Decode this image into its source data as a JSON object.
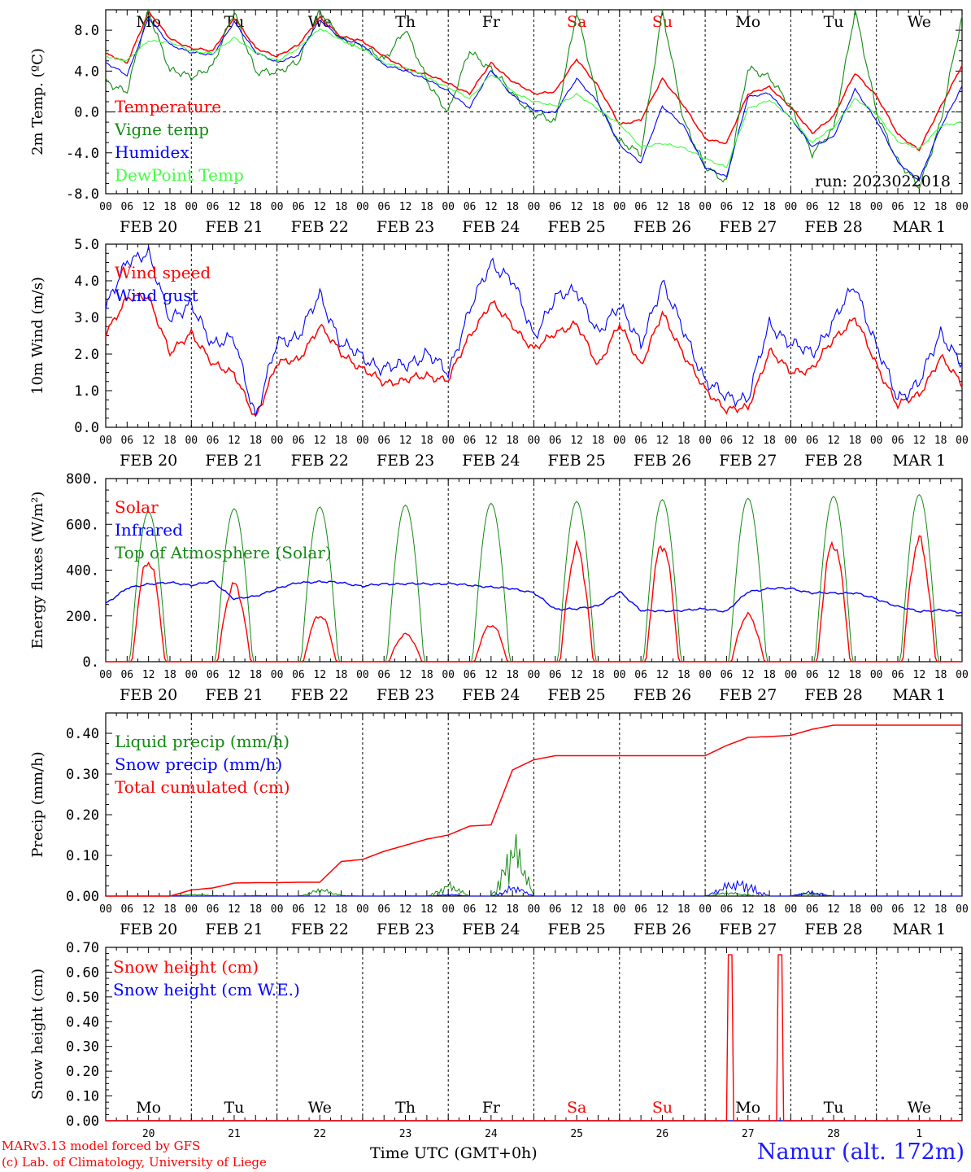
{
  "chart_data": [
    {
      "type": "line",
      "ylabel": "2m Temp. (ºC)",
      "ylim": [
        -8,
        10
      ],
      "yticks": [
        "-8.0",
        "-4.0",
        "0.0",
        "4.0",
        "8.0"
      ],
      "zero_line": true,
      "day_labels": [
        {
          "text": "Mo",
          "color": "#000000"
        },
        {
          "text": "Tu",
          "color": "#000000"
        },
        {
          "text": "We",
          "color": "#000000"
        },
        {
          "text": "Th",
          "color": "#000000"
        },
        {
          "text": "Fr",
          "color": "#000000"
        },
        {
          "text": "Sa",
          "color": "#ff0000"
        },
        {
          "text": "Su",
          "color": "#ff0000"
        },
        {
          "text": "Mo",
          "color": "#000000"
        },
        {
          "text": "Tu",
          "color": "#000000"
        },
        {
          "text": "We",
          "color": "#000000"
        }
      ],
      "annotation": "run: 2023022018",
      "x_hours": [
        0,
        6,
        12,
        18,
        24,
        30,
        36,
        42,
        48,
        54,
        60,
        66,
        72,
        78,
        84,
        90,
        96,
        102,
        108,
        114,
        120,
        126,
        132,
        138,
        144,
        150,
        156,
        162,
        168,
        174,
        180,
        186,
        192,
        198,
        204,
        210,
        216,
        222,
        228,
        234,
        240
      ],
      "series": [
        {
          "name": "Temperature",
          "color": "#ff0000",
          "values": [
            5.7,
            4.8,
            9.8,
            7.2,
            6.2,
            6.0,
            9.2,
            6.3,
            5.4,
            6.6,
            9.2,
            7.4,
            6.9,
            5.5,
            4.2,
            3.7,
            2.8,
            1.8,
            4.8,
            3.0,
            1.8,
            2.0,
            5.2,
            2.5,
            -1.2,
            -0.8,
            3.3,
            0.6,
            -2.6,
            -3.1,
            1.8,
            2.4,
            0.5,
            -2.1,
            -0.4,
            3.8,
            1.6,
            -2.2,
            -3.7,
            0.5,
            4.6
          ]
        },
        {
          "name": "Vigne temp",
          "color": "#138a13",
          "values": [
            3.0,
            2.0,
            10.0,
            4.0,
            3.5,
            4.4,
            10.0,
            3.8,
            4.0,
            4.8,
            10.0,
            7.0,
            6.5,
            5.0,
            8.2,
            3.0,
            0.0,
            6.0,
            4.2,
            1.8,
            -0.2,
            -1.0,
            9.8,
            1.0,
            -3.0,
            -4.0,
            9.8,
            -0.8,
            -5.4,
            -6.8,
            4.2,
            3.5,
            0.4,
            -4.0,
            -1.8,
            10.0,
            0.0,
            -4.8,
            -7.4,
            -1.0,
            9.4
          ]
        },
        {
          "name": "Humidex",
          "color": "#0000ff",
          "values": [
            4.8,
            3.6,
            9.2,
            6.6,
            5.8,
            5.6,
            8.8,
            5.9,
            4.8,
            5.6,
            9.0,
            7.2,
            6.5,
            4.6,
            4.0,
            3.2,
            2.0,
            0.4,
            4.1,
            1.6,
            0.2,
            -0.1,
            3.3,
            0.9,
            -3.2,
            -5.0,
            0.6,
            -1.4,
            -5.4,
            -6.4,
            1.5,
            1.8,
            -0.6,
            -3.4,
            -2.4,
            2.2,
            -0.8,
            -4.9,
            -6.7,
            -1.5,
            2.5
          ]
        },
        {
          "name": "DewPoint Temp",
          "color": "#40ff40",
          "values": [
            5.5,
            5.0,
            7.0,
            6.8,
            6.0,
            5.7,
            7.3,
            5.8,
            5.0,
            6.2,
            8.2,
            7.0,
            6.2,
            4.8,
            4.3,
            3.4,
            2.4,
            1.3,
            3.7,
            2.0,
            1.0,
            0.6,
            1.7,
            0.3,
            -1.2,
            -3.4,
            -3.1,
            -3.5,
            -4.6,
            -5.4,
            0.3,
            1.2,
            -0.6,
            -3.0,
            -1.5,
            1.3,
            -0.2,
            -2.9,
            -3.6,
            -1.4,
            -1.0
          ]
        }
      ]
    },
    {
      "type": "line",
      "ylabel": "10m Wind (m/s)",
      "ylim": [
        0,
        5
      ],
      "yticks": [
        "0.0",
        "1.0",
        "2.0",
        "3.0",
        "4.0",
        "5.0"
      ],
      "x_hours": [
        0,
        6,
        12,
        18,
        24,
        30,
        36,
        42,
        48,
        54,
        60,
        66,
        72,
        78,
        84,
        90,
        96,
        102,
        108,
        114,
        120,
        126,
        132,
        138,
        144,
        150,
        156,
        162,
        168,
        174,
        180,
        186,
        192,
        198,
        204,
        210,
        216,
        222,
        228,
        234,
        240
      ],
      "series": [
        {
          "name": "Wind speed",
          "color": "#ff0000",
          "values": [
            2.6,
            3.5,
            3.6,
            2.0,
            2.6,
            1.7,
            1.5,
            0.2,
            1.8,
            1.8,
            2.8,
            2.0,
            1.6,
            1.2,
            1.3,
            1.4,
            1.3,
            2.5,
            3.4,
            2.8,
            2.1,
            2.6,
            2.8,
            1.7,
            2.8,
            1.7,
            3.1,
            2.0,
            1.0,
            0.5,
            0.5,
            2.1,
            1.5,
            1.6,
            2.4,
            3.0,
            1.7,
            0.6,
            0.9,
            1.9,
            1.2
          ]
        },
        {
          "name": "Wind gust",
          "color": "#0000ff",
          "values": [
            3.2,
            4.6,
            4.7,
            3.0,
            3.3,
            2.3,
            2.4,
            0.3,
            2.3,
            2.5,
            3.6,
            2.3,
            1.9,
            1.6,
            1.7,
            2.0,
            1.5,
            3.2,
            4.5,
            4.0,
            2.5,
            3.5,
            3.8,
            2.5,
            3.4,
            2.2,
            4.0,
            2.6,
            1.3,
            0.8,
            0.8,
            2.8,
            2.3,
            2.0,
            2.9,
            3.9,
            2.2,
            0.8,
            1.2,
            2.6,
            1.7
          ]
        }
      ]
    },
    {
      "type": "line",
      "ylabel": "Energy fluxes (W/m²)",
      "ylim": [
        0,
        800
      ],
      "yticks": [
        "0.",
        "200.",
        "400.",
        "600.",
        "800."
      ],
      "daily_peaks": {
        "Top of Atmosphere (Solar)": [
          655,
          668,
          676,
          684,
          692,
          700,
          708,
          714,
          722,
          730
        ],
        "Solar": [
          445,
          340,
          205,
          120,
          160,
          490,
          505,
          200,
          515,
          530
        ]
      },
      "x_hours": [
        0,
        6,
        12,
        18,
        24,
        30,
        36,
        42,
        48,
        54,
        60,
        66,
        72,
        78,
        84,
        90,
        96,
        102,
        108,
        114,
        120,
        126,
        132,
        138,
        144,
        150,
        156,
        162,
        168,
        174,
        180,
        186,
        192,
        198,
        204,
        210,
        216,
        222,
        228,
        234,
        240
      ],
      "series": [
        {
          "name": "Solar",
          "color": "#ff0000",
          "values": []
        },
        {
          "name": "Infrared",
          "color": "#0000ff",
          "values": [
            255,
            320,
            340,
            345,
            335,
            350,
            275,
            285,
            320,
            345,
            350,
            345,
            330,
            340,
            340,
            340,
            340,
            335,
            325,
            320,
            300,
            230,
            230,
            245,
            305,
            225,
            220,
            225,
            230,
            220,
            305,
            320,
            320,
            300,
            300,
            300,
            275,
            240,
            220,
            225,
            215
          ]
        },
        {
          "name": "Top of Atmosphere (Solar)",
          "color": "#138a13",
          "values": []
        }
      ]
    },
    {
      "type": "line",
      "ylabel": "Precip (mm/h)",
      "ylim": [
        0,
        0.45
      ],
      "yticks": [
        "0.00",
        "0.10",
        "0.20",
        "0.30",
        "0.40"
      ],
      "x_hours": [
        0,
        6,
        12,
        18,
        24,
        30,
        36,
        42,
        48,
        54,
        60,
        66,
        72,
        78,
        84,
        90,
        96,
        102,
        108,
        114,
        120,
        126,
        132,
        138,
        144,
        150,
        156,
        162,
        168,
        174,
        180,
        186,
        192,
        198,
        204,
        210,
        216,
        222,
        228,
        234,
        240
      ],
      "series": [
        {
          "name": "Liquid precip (mm/h)",
          "color": "#138a13",
          "values": [
            0,
            0,
            0,
            0,
            0.005,
            0.003,
            0,
            0.002,
            0,
            0,
            0.02,
            0.003,
            0,
            0,
            0.001,
            0,
            0.035,
            0,
            0,
            0.17,
            0,
            0,
            0,
            0,
            0,
            0,
            0,
            0,
            0,
            0.01,
            0.005,
            0,
            0,
            0.01,
            0,
            0,
            0,
            0,
            0,
            0,
            0
          ]
        },
        {
          "name": "Snow precip (mm/h)",
          "color": "#0000ff",
          "values": [
            0,
            0,
            0,
            0,
            0,
            0,
            0,
            0,
            0,
            0,
            0,
            0,
            0,
            0,
            0,
            0,
            0.005,
            0,
            0,
            0.03,
            0,
            0,
            0,
            0,
            0,
            0,
            0,
            0,
            0,
            0.03,
            0.045,
            0,
            0,
            0.015,
            0,
            0,
            0,
            0,
            0,
            0,
            0
          ]
        },
        {
          "name": "Total cumulated (cm)",
          "color": "#ff0000",
          "values": [
            0,
            0,
            0,
            0,
            0.015,
            0.02,
            0.032,
            0.033,
            0.033,
            0.034,
            0.034,
            0.085,
            0.09,
            0.11,
            0.125,
            0.14,
            0.15,
            0.172,
            0.175,
            0.31,
            0.335,
            0.345,
            0.345,
            0.345,
            0.345,
            0.345,
            0.345,
            0.345,
            0.345,
            0.37,
            0.39,
            0.392,
            0.395,
            0.41,
            0.42,
            0.42,
            0.42,
            0.42,
            0.42,
            0.42,
            0.42
          ]
        }
      ]
    },
    {
      "type": "line",
      "ylabel": "Snow height (cm)",
      "ylim": [
        0,
        0.7
      ],
      "yticks": [
        "0.00",
        "0.10",
        "0.20",
        "0.30",
        "0.40",
        "0.50",
        "0.60",
        "0.70"
      ],
      "spikes_hours": [
        175,
        189
      ],
      "spike_value": 0.67,
      "x_hours": [
        0,
        6,
        12,
        18,
        24,
        30,
        36,
        42,
        48,
        54,
        60,
        66,
        72,
        78,
        84,
        90,
        96,
        102,
        108,
        114,
        120,
        126,
        132,
        138,
        144,
        150,
        156,
        162,
        168,
        174,
        180,
        186,
        192,
        198,
        204,
        210,
        216,
        222,
        228,
        234,
        240
      ],
      "series": [
        {
          "name": "Snow height (cm)",
          "color": "#ff0000",
          "values": []
        },
        {
          "name": "Snow height (cm W.E.)",
          "color": "#0000ff",
          "values": []
        }
      ]
    }
  ],
  "axis": {
    "hour_ticks": [
      "00",
      "06",
      "12",
      "18"
    ],
    "hour_end": "00",
    "date_labels": [
      "FEB 20",
      "FEB 21",
      "FEB 22",
      "FEB 23",
      "FEB 24",
      "FEB 25",
      "FEB 26",
      "FEB 27",
      "FEB 28",
      "MAR  1"
    ],
    "bottom_day_numbers": [
      "20",
      "21",
      "22",
      "23",
      "24",
      "25",
      "26",
      "27",
      "28",
      "1"
    ]
  },
  "footer": {
    "credit1": "MARv3.13 model forced by GFS",
    "credit2": "(c) Lab. of Climatology, University of Liege",
    "xaxis_title": "Time UTC (GMT+0h)",
    "station": "Namur (alt. 172m)"
  }
}
